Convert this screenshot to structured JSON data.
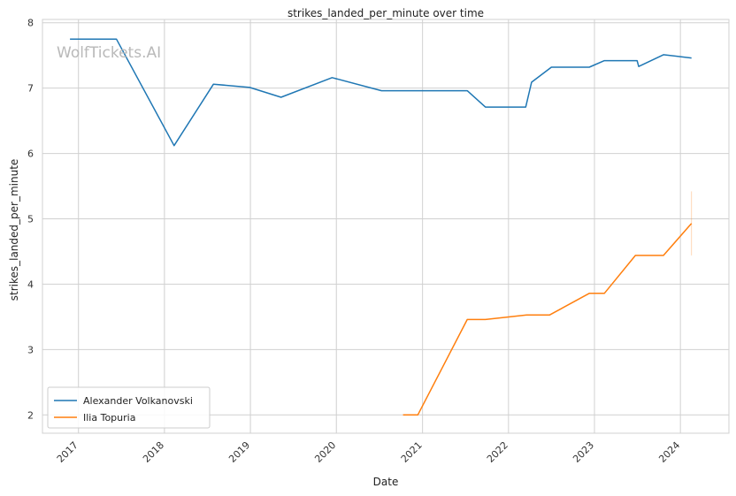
{
  "watermark": "WolfTickets.AI",
  "chart_data": {
    "type": "line",
    "title": "strikes_landed_per_minute over time",
    "xlabel": "Date",
    "ylabel": "strikes_landed_per_minute",
    "xlim": [
      "2016-08-01",
      "2024-07-25"
    ],
    "ylim": [
      1.72,
      8.05
    ],
    "x_ticks": [
      "2017",
      "2018",
      "2019",
      "2020",
      "2021",
      "2022",
      "2023",
      "2024"
    ],
    "y_ticks": [
      2,
      3,
      4,
      5,
      6,
      7,
      8
    ],
    "grid": true,
    "legend_position": "lower-left",
    "series": [
      {
        "name": "Alexander Volkanovski",
        "color": "#1f77b4",
        "points": [
          [
            "2016-11-26",
            7.75
          ],
          [
            "2017-06-11",
            7.75
          ],
          [
            "2018-02-11",
            6.12
          ],
          [
            "2018-07-28",
            7.06
          ],
          [
            "2018-12-29",
            7.01
          ],
          [
            "2019-05-11",
            6.86
          ],
          [
            "2019-12-14",
            7.16
          ],
          [
            "2020-07-11",
            6.96
          ],
          [
            "2021-07-10",
            6.96
          ],
          [
            "2021-09-25",
            6.71
          ],
          [
            "2022-03-15",
            6.71
          ],
          [
            "2022-04-09",
            7.09
          ],
          [
            "2022-07-02",
            7.32
          ],
          [
            "2022-12-10",
            7.32
          ],
          [
            "2023-02-12",
            7.42
          ],
          [
            "2023-07-01",
            7.42
          ],
          [
            "2023-07-08",
            7.33
          ],
          [
            "2023-10-21",
            7.51
          ],
          [
            "2024-02-17",
            7.46
          ]
        ]
      },
      {
        "name": "Ilia Topuria",
        "color": "#ff7f0e",
        "points": [
          [
            "2020-10-10",
            2.0
          ],
          [
            "2020-12-12",
            2.0
          ],
          [
            "2021-07-10",
            3.46
          ],
          [
            "2021-09-25",
            3.46
          ],
          [
            "2022-03-19",
            3.53
          ],
          [
            "2022-06-25",
            3.53
          ],
          [
            "2022-12-10",
            3.86
          ],
          [
            "2023-02-12",
            3.86
          ],
          [
            "2023-06-24",
            4.44
          ],
          [
            "2023-10-21",
            4.44
          ],
          [
            "2024-02-17",
            4.93
          ]
        ],
        "error_bar": {
          "x": "2024-02-17",
          "low": 4.44,
          "high": 5.42
        }
      }
    ]
  }
}
